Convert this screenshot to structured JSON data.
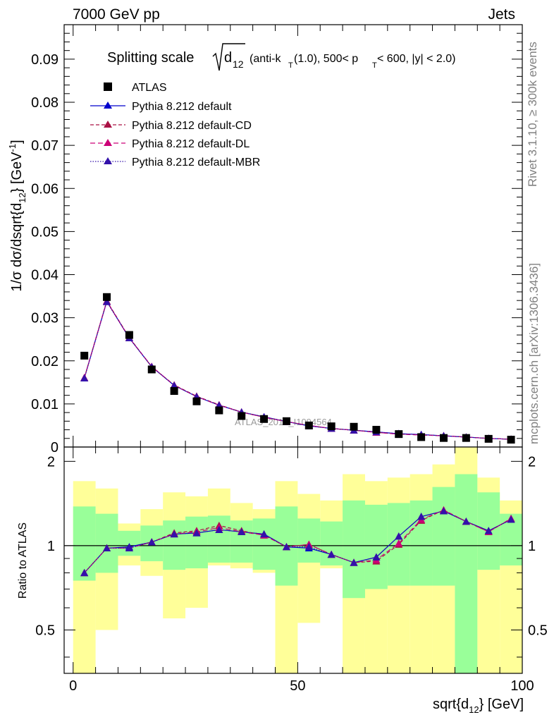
{
  "header": {
    "left": "7000 GeV pp",
    "right": "Jets"
  },
  "side_labels": {
    "rivet": "Rivet 3.1.10, ≥ 300k events",
    "mcplots": "mcplots.cern.ch [arXiv:1306.3436]"
  },
  "watermark": "ATLAS_2012_I1094564",
  "colors": {
    "data": "#000000",
    "default": "#0000cc",
    "cd": "#aa1144",
    "dl": "#cc0077",
    "mbr": "#3311aa",
    "band_inner": "#99ff99",
    "band_outer": "#ffff99"
  },
  "chart_data": [
    {
      "type": "scatter",
      "title": "Splitting scale √d12 (anti-kT(1.0), 500< pT < 600, |y| < 2.0)",
      "title_parts": {
        "lead": "Splitting scale",
        "d": "d",
        "d_sub": "12",
        "pre": "(anti-k",
        "k_sub": "T",
        "mid": "(1.0), 500< p",
        "p_sub": "T",
        "post": " < 600, |y| < 2.0)"
      },
      "ylabel": "1/σ dσ/dsqrt{d12} [GeV-1]",
      "ylabel_parts": {
        "main": "1/σ dσ/dsqrt{d",
        "sub": "12",
        "close": "} [GeV",
        "sup": "-1",
        "end": "]"
      },
      "xlim": [
        -2,
        100
      ],
      "ylim": [
        0,
        0.098
      ],
      "y_ticks": [
        "0",
        "0.01",
        "0.02",
        "0.03",
        "0.04",
        "0.05",
        "0.06",
        "0.07",
        "0.08",
        "0.09"
      ],
      "legend_placement": "top-left",
      "x": [
        2.5,
        7.5,
        12.5,
        17.5,
        22.5,
        27.5,
        32.5,
        37.5,
        42.5,
        47.5,
        52.5,
        57.5,
        62.5,
        67.5,
        72.5,
        77.5,
        82.5,
        87.5,
        92.5,
        97.5
      ],
      "series": [
        {
          "name": "ATLAS",
          "values": [
            0.0212,
            0.0348,
            0.026,
            0.018,
            0.013,
            0.0106,
            0.0085,
            0.0072,
            0.0065,
            0.006,
            0.005,
            0.0048,
            0.0047,
            0.004,
            0.003,
            0.0023,
            0.0021,
            0.0021,
            0.0019,
            0.0017
          ]
        },
        {
          "name": "Pythia 8.212 default",
          "values": [
            0.016,
            0.0338,
            0.0253,
            0.0186,
            0.0143,
            0.0117,
            0.0097,
            0.0081,
            0.007,
            0.0059,
            0.0049,
            0.0043,
            0.0039,
            0.0035,
            0.0031,
            0.0029,
            0.0026,
            0.0023,
            0.002,
            0.0018
          ]
        },
        {
          "name": "Pythia 8.212 default-CD",
          "values": [
            0.0161,
            0.0339,
            0.0254,
            0.0186,
            0.0144,
            0.0118,
            0.0098,
            0.0081,
            0.0069,
            0.0059,
            0.005,
            0.0043,
            0.0039,
            0.0034,
            0.003,
            0.0028,
            0.0026,
            0.0023,
            0.002,
            0.0018
          ]
        },
        {
          "name": "Pythia 8.212 default-DL",
          "values": [
            0.0161,
            0.0338,
            0.0253,
            0.0187,
            0.0143,
            0.0117,
            0.0097,
            0.0081,
            0.0069,
            0.0059,
            0.005,
            0.0043,
            0.0039,
            0.0034,
            0.003,
            0.0028,
            0.0026,
            0.0023,
            0.002,
            0.0018
          ]
        },
        {
          "name": "Pythia 8.212 default-MBR",
          "values": [
            0.016,
            0.0337,
            0.0253,
            0.0186,
            0.0143,
            0.0117,
            0.0097,
            0.0081,
            0.007,
            0.0059,
            0.0049,
            0.0043,
            0.0039,
            0.0035,
            0.0031,
            0.0029,
            0.0026,
            0.0023,
            0.002,
            0.0018
          ]
        }
      ]
    },
    {
      "type": "line",
      "xlabel": "sqrt{d12} [GeV]",
      "xlabel_parts": {
        "main": "sqrt{d",
        "sub": "12",
        "end": "} [GeV]"
      },
      "ylabel": "Ratio to ATLAS",
      "xlim": [
        -2,
        100
      ],
      "ylim": [
        0.35,
        2.25
      ],
      "y_ticks": [
        0.5,
        1,
        2
      ],
      "y_tick_labels": [
        "0.5",
        "1",
        "2"
      ],
      "x_ticks": [
        0,
        50,
        100
      ],
      "x_tick_labels": [
        "0",
        "50",
        "100"
      ],
      "x_bins": [
        0,
        5,
        10,
        15,
        20,
        25,
        30,
        35,
        40,
        45,
        50,
        55,
        60,
        65,
        70,
        75,
        80,
        85,
        90,
        95,
        100
      ],
      "band_inner": [
        [
          0.75,
          1.38
        ],
        [
          0.8,
          1.3
        ],
        [
          0.92,
          1.13
        ],
        [
          0.88,
          1.18
        ],
        [
          0.82,
          1.23
        ],
        [
          0.83,
          1.27
        ],
        [
          0.87,
          1.28
        ],
        [
          0.87,
          1.23
        ],
        [
          0.82,
          1.25
        ],
        [
          0.72,
          1.38
        ],
        [
          0.87,
          1.25
        ],
        [
          0.85,
          1.22
        ],
        [
          0.65,
          1.45
        ],
        [
          0.7,
          1.4
        ],
        [
          0.72,
          1.42
        ],
        [
          0.72,
          1.45
        ],
        [
          0.72,
          1.62
        ],
        [
          0.35,
          1.8
        ],
        [
          0.82,
          1.55
        ],
        [
          0.85,
          1.3
        ]
      ],
      "band_outer": [
        [
          0.35,
          1.7
        ],
        [
          0.5,
          1.6
        ],
        [
          0.85,
          1.2
        ],
        [
          0.78,
          1.35
        ],
        [
          0.55,
          1.55
        ],
        [
          0.6,
          1.5
        ],
        [
          0.85,
          1.6
        ],
        [
          0.83,
          1.42
        ],
        [
          0.8,
          1.35
        ],
        [
          0.35,
          1.7
        ],
        [
          0.53,
          1.53
        ],
        [
          0.83,
          1.45
        ],
        [
          0.35,
          1.8
        ],
        [
          0.35,
          1.7
        ],
        [
          0.35,
          1.75
        ],
        [
          0.35,
          1.8
        ],
        [
          0.35,
          1.95
        ],
        [
          0.35,
          2.25
        ],
        [
          0.35,
          1.75
        ],
        [
          0.35,
          1.45
        ]
      ],
      "series": [
        {
          "name": "Pythia 8.212 default",
          "values": [
            0.8,
            0.98,
            0.99,
            1.03,
            1.1,
            1.11,
            1.14,
            1.12,
            1.1,
            0.99,
            0.98,
            0.93,
            0.87,
            0.91,
            1.08,
            1.27,
            1.33,
            1.22,
            1.13,
            1.24
          ]
        },
        {
          "name": "Pythia 8.212 default-CD",
          "values": [
            0.8,
            0.98,
            0.98,
            1.03,
            1.11,
            1.13,
            1.18,
            1.13,
            1.09,
            0.99,
            1.01,
            0.93,
            0.87,
            0.88,
            1.01,
            1.23,
            1.34,
            1.22,
            1.12,
            1.25
          ]
        },
        {
          "name": "Pythia 8.212 default-DL",
          "values": [
            0.8,
            0.98,
            0.98,
            1.03,
            1.1,
            1.12,
            1.16,
            1.12,
            1.09,
            0.99,
            1.01,
            0.93,
            0.87,
            0.89,
            1.02,
            1.24,
            1.34,
            1.22,
            1.12,
            1.25
          ]
        },
        {
          "name": "Pythia 8.212 default-MBR",
          "values": [
            0.8,
            0.98,
            0.98,
            1.03,
            1.1,
            1.11,
            1.14,
            1.12,
            1.1,
            0.99,
            0.99,
            0.93,
            0.87,
            0.91,
            1.08,
            1.27,
            1.33,
            1.22,
            1.13,
            1.24
          ]
        }
      ]
    }
  ]
}
